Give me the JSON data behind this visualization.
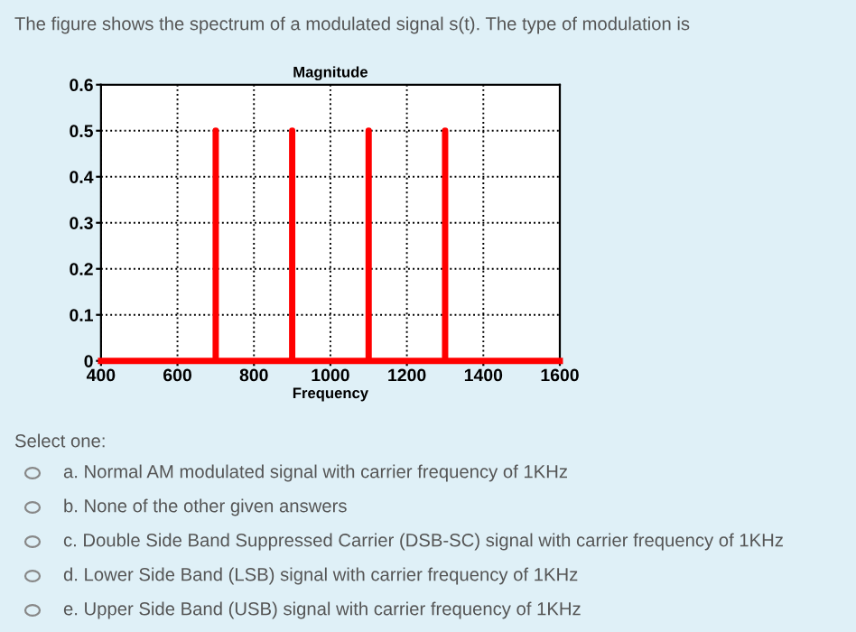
{
  "chart_data": {
    "type": "line",
    "title": "Magnitude",
    "xlabel": "Frequency",
    "x": [
      400,
      700,
      700,
      700,
      900,
      900,
      900,
      1100,
      1100,
      1100,
      1300,
      1300,
      1300,
      1600
    ],
    "series": [
      {
        "color": "#ff0000",
        "values": [
          0,
          0,
          0.5,
          0,
          0,
          0.5,
          0,
          0,
          0.5,
          0,
          0,
          0.5,
          0,
          0
        ]
      }
    ],
    "xlim": [
      400,
      1600
    ],
    "xticks": [
      400,
      600,
      800,
      1000,
      1200,
      1400,
      1600
    ],
    "ylim": [
      0,
      0.6
    ],
    "yticks": [
      0,
      0.1,
      0.2,
      0.3,
      0.4,
      0.5,
      0.6
    ],
    "grid": true,
    "line_style": "solid",
    "marker": "none",
    "annotations": [
      "The figure shows the spectrum of a modulated signal s(t). The type of modulation is",
      "Select one:",
      "a. Normal AM modulated signal with carrier frequency of 1KHz",
      "b. None of the other given answers",
      "c. Double Side Band Suppressed Carrier (DSB-SC) signal with carrier frequency of 1KHz",
      "d. Lower Side Band (LSB) signal with carrier frequency of 1KHz",
      "e. Upper Side Band (USB) signal with carrier frequency of 1KHz"
    ]
  }
}
